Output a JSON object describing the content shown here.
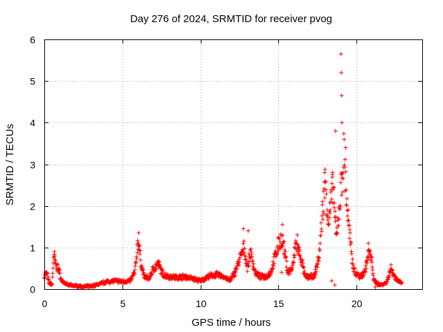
{
  "chart_data": {
    "type": "scatter",
    "title": "Day 276 of 2024, SRMTID for receiver pvog",
    "xlabel": "GPS time / hours",
    "ylabel": "SRMTID / TECUs",
    "xlim": [
      0,
      24.2
    ],
    "ylim": [
      0,
      6
    ],
    "xticks": [
      "0",
      "5",
      "10",
      "15",
      "20"
    ],
    "yticks": [
      "0",
      "1",
      "2",
      "3",
      "4",
      "5",
      "6"
    ],
    "grid": true,
    "marker": "plus",
    "color": "#ff0000",
    "series": [
      {
        "name": "SRMTID",
        "profile": [
          [
            0.0,
            0.3
          ],
          [
            0.15,
            0.4
          ],
          [
            0.3,
            0.15
          ],
          [
            0.5,
            0.12
          ],
          [
            0.6,
            0.8
          ],
          [
            0.75,
            0.55
          ],
          [
            0.9,
            0.5
          ],
          [
            1.1,
            0.2
          ],
          [
            1.5,
            0.1
          ],
          [
            2.0,
            0.08
          ],
          [
            2.5,
            0.06
          ],
          [
            3.0,
            0.07
          ],
          [
            3.5,
            0.12
          ],
          [
            4.0,
            0.18
          ],
          [
            4.5,
            0.2
          ],
          [
            5.0,
            0.18
          ],
          [
            5.5,
            0.2
          ],
          [
            5.8,
            0.4
          ],
          [
            6.0,
            1.2
          ],
          [
            6.2,
            0.6
          ],
          [
            6.4,
            0.3
          ],
          [
            6.7,
            0.25
          ],
          [
            7.0,
            0.5
          ],
          [
            7.3,
            0.6
          ],
          [
            7.6,
            0.35
          ],
          [
            8.0,
            0.3
          ],
          [
            8.5,
            0.28
          ],
          [
            9.0,
            0.3
          ],
          [
            9.5,
            0.25
          ],
          [
            10.0,
            0.2
          ],
          [
            10.5,
            0.3
          ],
          [
            11.0,
            0.35
          ],
          [
            11.5,
            0.3
          ],
          [
            11.9,
            0.2
          ],
          [
            12.2,
            0.4
          ],
          [
            12.5,
            0.7
          ],
          [
            12.8,
            1.0
          ],
          [
            13.0,
            0.5
          ],
          [
            13.2,
            0.9
          ],
          [
            13.5,
            0.4
          ],
          [
            13.8,
            0.3
          ],
          [
            14.2,
            0.3
          ],
          [
            14.5,
            0.4
          ],
          [
            14.8,
            0.8
          ],
          [
            15.1,
            1.2
          ],
          [
            15.3,
            1.1
          ],
          [
            15.6,
            0.4
          ],
          [
            15.9,
            0.5
          ],
          [
            16.1,
            1.1
          ],
          [
            16.4,
            0.8
          ],
          [
            16.7,
            0.3
          ],
          [
            17.0,
            0.3
          ],
          [
            17.3,
            0.3
          ],
          [
            17.6,
            0.8
          ],
          [
            17.8,
            1.8
          ],
          [
            18.0,
            2.6
          ],
          [
            18.2,
            1.6
          ],
          [
            18.5,
            2.5
          ],
          [
            18.7,
            1.2
          ],
          [
            18.9,
            2.0
          ],
          [
            19.0,
            2.4
          ],
          [
            19.2,
            3.3
          ],
          [
            19.35,
            2.2
          ],
          [
            19.5,
            1.5
          ],
          [
            19.7,
            0.7
          ],
          [
            19.9,
            0.4
          ],
          [
            20.2,
            0.3
          ],
          [
            20.5,
            0.4
          ],
          [
            20.8,
            0.9
          ],
          [
            21.0,
            0.6
          ],
          [
            21.1,
            0.2
          ],
          [
            21.5,
            0.1
          ],
          [
            21.9,
            0.15
          ],
          [
            22.2,
            0.5
          ],
          [
            22.5,
            0.25
          ],
          [
            22.9,
            0.15
          ]
        ],
        "outliers": [
          [
            0.65,
            0.9
          ],
          [
            6.05,
            1.35
          ],
          [
            7.35,
            0.65
          ],
          [
            12.75,
            1.45
          ],
          [
            13.05,
            1.4
          ],
          [
            15.25,
            1.55
          ],
          [
            16.2,
            1.3
          ],
          [
            17.95,
            2.8
          ],
          [
            18.45,
            2.75
          ],
          [
            18.65,
            3.8
          ],
          [
            19.0,
            5.65
          ],
          [
            19.02,
            5.2
          ],
          [
            19.04,
            4.65
          ],
          [
            19.06,
            4.0
          ],
          [
            19.3,
            3.4
          ],
          [
            18.6,
            0.1
          ],
          [
            18.4,
            0.2
          ],
          [
            20.75,
            1.1
          ],
          [
            15.2,
            0.4
          ],
          [
            21.2,
            0.05
          ]
        ]
      }
    ]
  }
}
